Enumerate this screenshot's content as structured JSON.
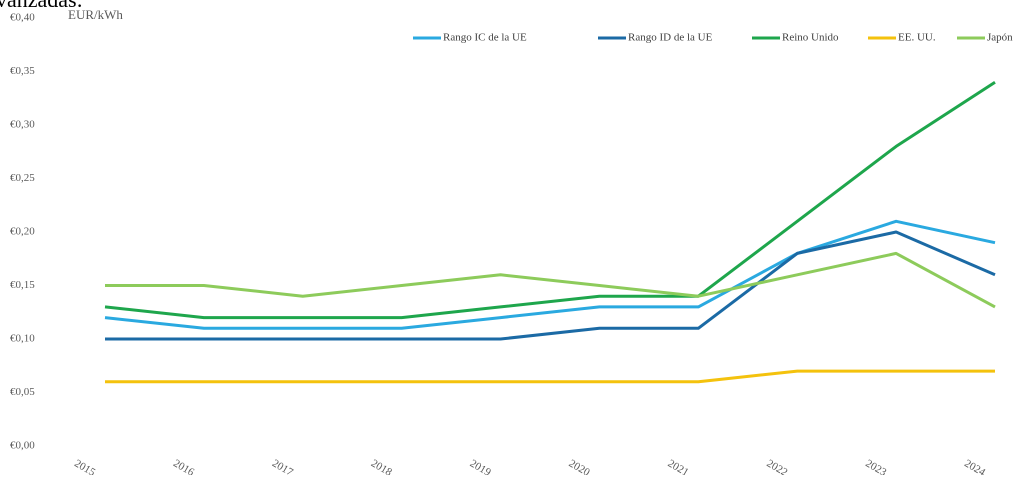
{
  "heading": "vanzadas:",
  "chart_data": {
    "type": "line",
    "ylabel": "EUR/kWh",
    "categories": [
      "2015",
      "2016",
      "2017",
      "2018",
      "2019",
      "2020",
      "2021",
      "2022",
      "2023",
      "2024"
    ],
    "series": [
      {
        "name": "Rango IC de la UE",
        "color": "#2aa9e0",
        "values": [
          0.12,
          0.11,
          0.11,
          0.11,
          0.12,
          0.13,
          0.13,
          0.18,
          0.21,
          0.19
        ]
      },
      {
        "name": "Rango ID de la UE",
        "color": "#1b6aa5",
        "values": [
          0.1,
          0.1,
          0.1,
          0.1,
          0.1,
          0.11,
          0.11,
          0.18,
          0.2,
          0.16
        ]
      },
      {
        "name": "Reino Unido",
        "color": "#1ea64c",
        "values": [
          0.13,
          0.12,
          0.12,
          0.12,
          0.13,
          0.14,
          0.14,
          0.21,
          0.28,
          0.34
        ]
      },
      {
        "name": "EE. UU.",
        "color": "#f4c20d",
        "values": [
          0.06,
          0.06,
          0.06,
          0.06,
          0.06,
          0.06,
          0.06,
          0.07,
          0.07,
          0.07
        ]
      },
      {
        "name": "Japón",
        "color": "#8dcb5b",
        "values": [
          0.15,
          0.15,
          0.14,
          0.15,
          0.16,
          0.15,
          0.14,
          0.16,
          0.18,
          0.13
        ]
      }
    ],
    "ylim": [
      0,
      0.4
    ],
    "yticks": [
      {
        "value": 0,
        "label": "€0,00"
      },
      {
        "value": 0.05,
        "label": "€0,05"
      },
      {
        "value": 0.1,
        "label": "€0,10"
      },
      {
        "value": 0.15,
        "label": "€0,15"
      },
      {
        "value": 0.2,
        "label": "€0,20"
      },
      {
        "value": 0.25,
        "label": "€0,25"
      },
      {
        "value": 0.3,
        "label": "€0,30"
      },
      {
        "value": 0.35,
        "label": "€0,35"
      },
      {
        "value": 0.4,
        "label": "€0,40"
      }
    ],
    "legend": "top-right",
    "grid": false
  }
}
